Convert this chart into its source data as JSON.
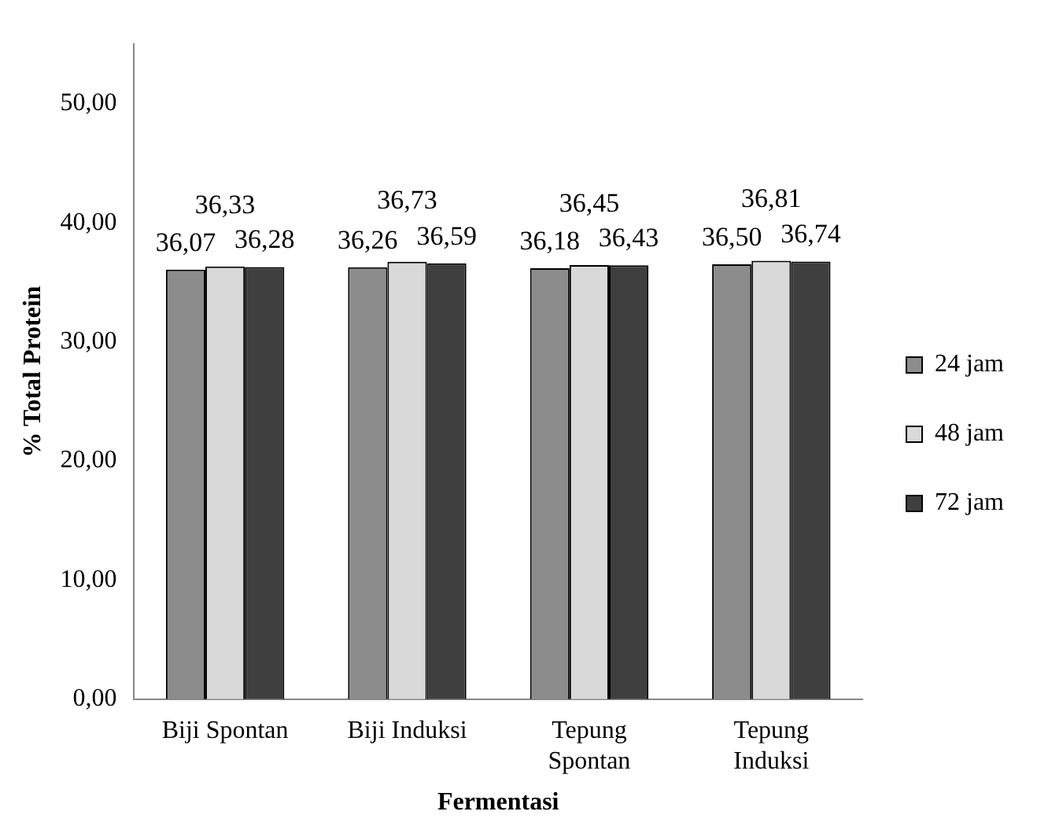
{
  "chart_data": {
    "type": "bar",
    "xlabel": "Fermentasi",
    "ylabel": "% Total Protein",
    "categories": [
      "Biji Spontan",
      "Biji Induksi",
      "Tepung\nSpontan",
      "Tepung\nInduksi"
    ],
    "series": [
      {
        "name": "24 jam",
        "color": "#8c8c8c",
        "values": [
          36.07,
          36.26,
          36.18,
          36.5
        ],
        "value_labels": [
          "36,07",
          "36,26",
          "36,18",
          "36,50"
        ]
      },
      {
        "name": "48 jam",
        "color": "#d9d9d9",
        "values": [
          36.33,
          36.73,
          36.45,
          36.81
        ],
        "value_labels": [
          "36,33",
          "36,73",
          "36,45",
          "36,81"
        ]
      },
      {
        "name": "72 jam",
        "color": "#3f3f3f",
        "values": [
          36.28,
          36.59,
          36.43,
          36.74
        ],
        "value_labels": [
          "36,28",
          "36,59",
          "36,43",
          "36,74"
        ]
      }
    ],
    "ylim": [
      0,
      55
    ],
    "yticks": [
      {
        "value": 0,
        "label": "0,00"
      },
      {
        "value": 10,
        "label": "10,00"
      },
      {
        "value": 20,
        "label": "20,00"
      },
      {
        "value": 30,
        "label": "30,00"
      },
      {
        "value": 40,
        "label": "40,00"
      },
      {
        "value": 50,
        "label": "50,00"
      }
    ],
    "grid": false,
    "legend": "right"
  }
}
